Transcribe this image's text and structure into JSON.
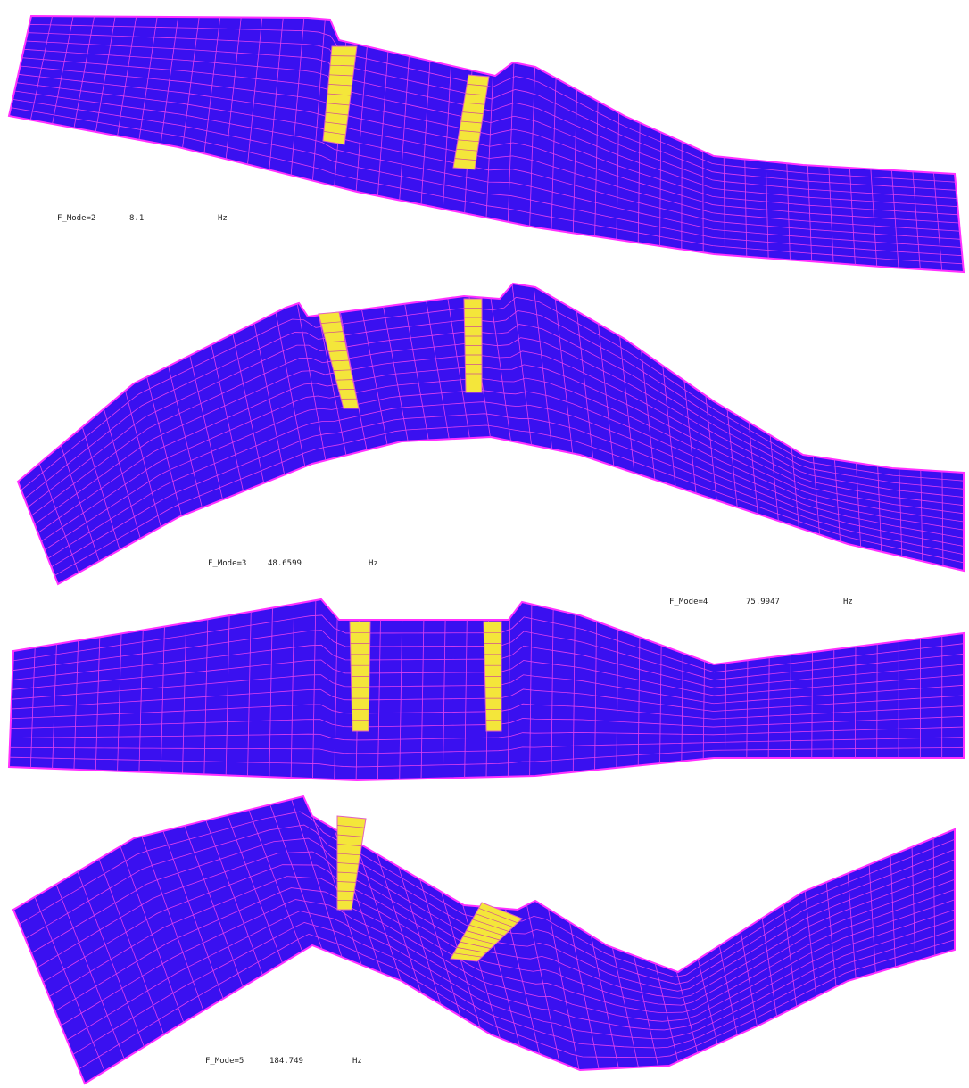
{
  "modes": [
    {
      "label": "F_Mode=2",
      "frequency": 8.1,
      "unit": "Hz"
    },
    {
      "label": "F_Mode=3",
      "frequency": 48.6599,
      "unit": "Hz"
    },
    {
      "label": "F_Mode=4",
      "frequency": 75.9947,
      "unit": "Hz"
    },
    {
      "label": "F_Mode=5",
      "frequency": 184.749,
      "unit": "Hz"
    }
  ]
}
